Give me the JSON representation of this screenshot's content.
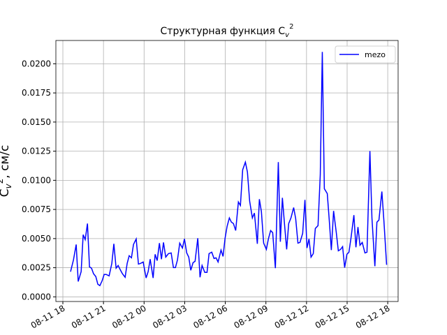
{
  "chart_data": {
    "type": "line",
    "title": "Структурная функция C",
    "title_sub": "v",
    "title_sup": "2",
    "ylabel": "C",
    "ylabel_sub": "v",
    "ylabel_sup": "2",
    "ylabel_unit": ", см/с",
    "x": [
      "08-11 18:34",
      "08-11 18:47",
      "08-11 18:59",
      "08-11 19:08",
      "08-11 19:21",
      "08-11 19:30",
      "08-11 19:39",
      "08-11 19:49",
      "08-11 19:58",
      "08-11 20:07",
      "08-11 20:16",
      "08-11 20:26",
      "08-11 20:35",
      "08-11 20:44",
      "08-11 20:54",
      "08-11 21:03",
      "08-11 21:12",
      "08-11 21:25",
      "08-11 21:37",
      "08-11 21:46",
      "08-11 21:56",
      "08-11 22:05",
      "08-11 22:14",
      "08-11 22:24",
      "08-11 22:36",
      "08-11 22:45",
      "08-11 22:54",
      "08-11 23:04",
      "08-11 23:13",
      "08-11 23:25",
      "08-11 23:35",
      "08-11 23:44",
      "08-11 23:56",
      "08-12 00:09",
      "08-12 00:18",
      "08-12 00:27",
      "08-12 00:40",
      "08-12 00:49",
      "08-12 00:58",
      "08-12 01:08",
      "08-12 01:17",
      "08-12 01:26",
      "08-12 01:36",
      "08-12 01:48",
      "08-12 02:00",
      "08-12 02:10",
      "08-12 02:19",
      "08-12 02:28",
      "08-12 02:38",
      "08-12 02:50",
      "08-12 02:59",
      "08-12 03:09",
      "08-12 03:18",
      "08-12 03:27",
      "08-12 03:37",
      "08-12 03:46",
      "08-12 03:58",
      "08-12 04:08",
      "08-12 04:17",
      "08-12 04:29",
      "08-12 04:39",
      "08-12 04:48",
      "08-12 05:00",
      "08-12 05:10",
      "08-12 05:19",
      "08-12 05:28",
      "08-12 05:41",
      "08-12 05:50",
      "08-12 05:59",
      "08-12 06:08",
      "08-12 06:18",
      "08-12 06:27",
      "08-12 06:36",
      "08-12 06:46",
      "08-12 06:58",
      "08-12 07:07",
      "08-12 07:17",
      "08-12 07:29",
      "08-12 07:38",
      "08-12 07:48",
      "08-12 08:00",
      "08-12 08:09",
      "08-12 08:22",
      "08-12 08:31",
      "08-12 08:40",
      "08-12 08:50",
      "08-12 09:02",
      "08-12 09:11",
      "08-12 09:21",
      "08-12 09:30",
      "08-12 09:42",
      "08-12 09:55",
      "08-12 10:04",
      "08-12 10:13",
      "08-12 10:23",
      "08-12 10:32",
      "08-12 10:41",
      "08-12 10:51",
      "08-12 11:03",
      "08-12 11:12",
      "08-12 11:22",
      "08-12 11:31",
      "08-12 11:43",
      "08-12 11:53",
      "08-12 12:02",
      "08-12 12:11",
      "08-12 12:20",
      "08-12 12:30",
      "08-12 12:39",
      "08-12 12:51",
      "08-12 13:01",
      "08-12 13:10",
      "08-12 13:19",
      "08-12 13:32",
      "08-12 13:41",
      "08-12 13:50",
      "08-12 14:00",
      "08-12 14:12",
      "08-12 14:21",
      "08-12 14:31",
      "08-12 14:40",
      "08-12 14:49",
      "08-12 14:59",
      "08-12 15:08",
      "08-12 15:17",
      "08-12 15:30",
      "08-12 15:39",
      "08-12 15:48",
      "08-12 15:57",
      "08-12 16:07",
      "08-12 16:19",
      "08-12 16:28",
      "08-12 16:41",
      "08-12 16:50",
      "08-12 17:03",
      "08-12 17:12",
      "08-12 17:21",
      "08-12 17:34",
      "08-12 17:43",
      "08-12 17:55"
    ],
    "series": [
      {
        "name": "mezo",
        "color": "#0000ff",
        "values": [
          0.00216,
          0.00317,
          0.00449,
          0.00132,
          0.00216,
          0.00533,
          0.00491,
          0.00629,
          0.00257,
          0.00246,
          0.00198,
          0.00174,
          0.00108,
          0.00096,
          0.00138,
          0.00192,
          0.00192,
          0.0018,
          0.00287,
          0.00455,
          0.00246,
          0.00269,
          0.00234,
          0.00198,
          0.00168,
          0.00287,
          0.00353,
          0.00335,
          0.00449,
          0.00497,
          0.00281,
          0.00287,
          0.00299,
          0.00162,
          0.00216,
          0.00323,
          0.00162,
          0.00365,
          0.00311,
          0.00461,
          0.00323,
          0.00467,
          0.00341,
          0.00371,
          0.00377,
          0.00251,
          0.00251,
          0.00317,
          0.00461,
          0.00419,
          0.00497,
          0.00377,
          0.00341,
          0.00228,
          0.00293,
          0.00305,
          0.00503,
          0.00168,
          0.00269,
          0.0021,
          0.0021,
          0.00371,
          0.00383,
          0.00329,
          0.00335,
          0.00299,
          0.00401,
          0.00347,
          0.00503,
          0.00605,
          0.00677,
          0.00641,
          0.00629,
          0.00569,
          0.00814,
          0.00784,
          0.0109,
          0.01156,
          0.01072,
          0.0082,
          0.00677,
          0.00719,
          0.00455,
          0.00838,
          0.00731,
          0.00461,
          0.00407,
          0.00497,
          0.00569,
          0.00551,
          0.00246,
          0.01156,
          0.00473,
          0.0085,
          0.00611,
          0.00407,
          0.00629,
          0.00677,
          0.00766,
          0.00671,
          0.00461,
          0.00467,
          0.00545,
          0.00832,
          0.00419,
          0.00497,
          0.00341,
          0.00371,
          0.00587,
          0.00611,
          0.01048,
          0.02102,
          0.00928,
          0.00886,
          0.00653,
          0.00401,
          0.00737,
          0.00551,
          0.00395,
          0.00407,
          0.00431,
          0.00251,
          0.00365,
          0.00383,
          0.00503,
          0.00701,
          0.00425,
          0.00599,
          0.00443,
          0.00467,
          0.00377,
          0.00383,
          0.01251,
          0.00677,
          0.00263,
          0.00641,
          0.00659,
          0.00904,
          0.00653,
          0.00275
        ]
      }
    ],
    "xlim": [
      "08-11 17:29",
      "08-12 18:46"
    ],
    "xticks": [
      {
        "value": "08-11 18:00",
        "label": "08-11 18"
      },
      {
        "value": "08-11 21:00",
        "label": "08-11 21"
      },
      {
        "value": "08-12 00:00",
        "label": "08-12 00"
      },
      {
        "value": "08-12 03:00",
        "label": "08-12 03"
      },
      {
        "value": "08-12 06:00",
        "label": "08-12 06"
      },
      {
        "value": "08-12 09:00",
        "label": "08-12 09"
      },
      {
        "value": "08-12 12:00",
        "label": "08-12 12"
      },
      {
        "value": "08-12 15:00",
        "label": "08-12 15"
      },
      {
        "value": "08-12 18:00",
        "label": "08-12 18"
      }
    ],
    "ylim": [
      -0.0004,
      0.022
    ],
    "yticks": [
      {
        "value": 0,
        "label": "0.0000"
      },
      {
        "value": 0.0025,
        "label": "0.0025"
      },
      {
        "value": 0.005,
        "label": "0.0050"
      },
      {
        "value": 0.0075,
        "label": "0.0075"
      },
      {
        "value": 0.01,
        "label": "0.0100"
      },
      {
        "value": 0.0125,
        "label": "0.0125"
      },
      {
        "value": 0.015,
        "label": "0.0150"
      },
      {
        "value": 0.0175,
        "label": "0.0175"
      },
      {
        "value": 0.02,
        "label": "0.0200"
      }
    ],
    "grid": true,
    "legend": "upper right"
  }
}
